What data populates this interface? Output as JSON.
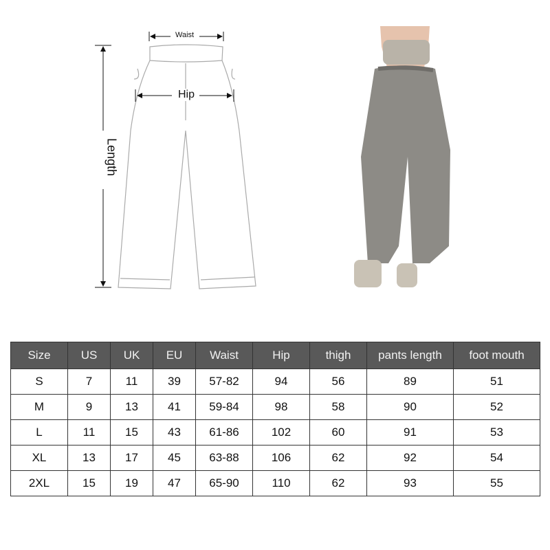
{
  "diagram": {
    "waist_label": "Waist",
    "hip_label": "Hip",
    "length_label": "Length"
  },
  "table": {
    "headers": [
      "Size",
      "US",
      "UK",
      "EU",
      "Waist",
      "Hip",
      "thigh",
      "pants length",
      "foot mouth"
    ],
    "rows": [
      [
        "S",
        "7",
        "11",
        "39",
        "57-82",
        "94",
        "56",
        "89",
        "51"
      ],
      [
        "M",
        "9",
        "13",
        "41",
        "59-84",
        "98",
        "58",
        "90",
        "52"
      ],
      [
        "L",
        "11",
        "15",
        "43",
        "61-86",
        "102",
        "60",
        "91",
        "53"
      ],
      [
        "XL",
        "13",
        "17",
        "45",
        "63-88",
        "106",
        "62",
        "92",
        "54"
      ],
      [
        "2XL",
        "15",
        "19",
        "47",
        "65-90",
        "110",
        "62",
        "93",
        "55"
      ]
    ]
  },
  "colors": {
    "header_bg": "#595959",
    "pants_gray": "#8d8b86"
  }
}
